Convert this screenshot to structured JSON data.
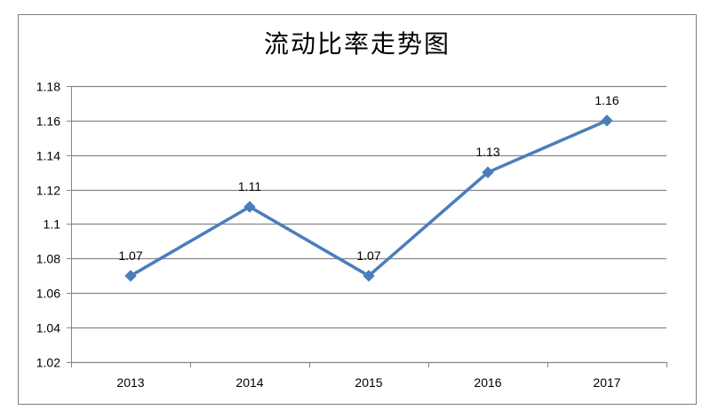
{
  "chart_data": {
    "type": "line",
    "title": "流动比率走势图",
    "categories": [
      "2013",
      "2014",
      "2015",
      "2016",
      "2017"
    ],
    "series": [
      {
        "values": [
          1.07,
          1.11,
          1.07,
          1.13,
          1.16
        ],
        "color": "#4a7ebb"
      }
    ],
    "data_labels": [
      "1.07",
      "1.11",
      "1.07",
      "1.13",
      "1.16"
    ],
    "ylim": [
      1.02,
      1.18
    ],
    "yticks": [
      1.02,
      1.04,
      1.06,
      1.08,
      1.1,
      1.12,
      1.14,
      1.16,
      1.18
    ],
    "ytick_labels": [
      "1.02",
      "1.04",
      "1.06",
      "1.08",
      "1.1",
      "1.12",
      "1.14",
      "1.16",
      "1.18"
    ],
    "marker": "diamond",
    "grid": "horizontal",
    "legend": "none",
    "colors": {
      "line": "#4a7ebb",
      "grid": "#868686",
      "axis": "#868686"
    }
  }
}
